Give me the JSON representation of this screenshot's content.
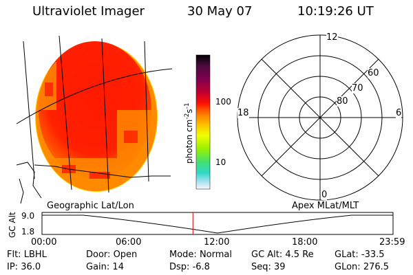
{
  "header": {
    "instrument": "Ultraviolet Imager",
    "date": "30 May 07",
    "time": "10:19:26 UT"
  },
  "colorbar": {
    "unit_label": "photon cm-2s-1",
    "unit_main": "photon cm",
    "unit_exp1": "-2",
    "unit_s": "s",
    "unit_exp2": "-1",
    "ticks": [
      "100",
      "10"
    ],
    "colors": [
      "#000000",
      "#4a0a3c",
      "#7a0050",
      "#a00040",
      "#c80030",
      "#e80010",
      "#ff3000",
      "#ff8a00",
      "#ffc000",
      "#f0ff00",
      "#a8f000",
      "#40e070",
      "#30d8c8",
      "#a0e0f0",
      "#f0f0f0"
    ]
  },
  "polar_plot": {
    "mlt_labels": {
      "top": "12",
      "left": "18",
      "right": "6",
      "bottom": "0"
    },
    "lat_labels": [
      "60",
      "70",
      "80"
    ]
  },
  "image": {
    "dominant_color": "#f82000",
    "edge_color": "#ff8000"
  },
  "altitude_strip": {
    "left_title": "Geographic Lat/Lon",
    "right_title": "Apex MLat/MLT",
    "ylabel": "GC Alt",
    "y_ticks": [
      "9.0",
      "1.8"
    ],
    "x_ticks": [
      "00:00",
      "06:00",
      "12:00",
      "18:00",
      "23:59"
    ],
    "marker_time_hours": 10.32,
    "marker_color": "#d00000"
  },
  "footer": {
    "rows": [
      [
        {
          "key": "Flt:",
          "val": "LBHL"
        },
        {
          "key": "Door:",
          "val": "Open"
        },
        {
          "key": "Mode:",
          "val": "Normal"
        },
        {
          "key": "GC Alt:",
          "val": "4.5 Re"
        },
        {
          "key": "GLat:",
          "val": "-33.5"
        }
      ],
      [
        {
          "key": "IP:",
          "val": "36.0"
        },
        {
          "key": "Gain:",
          "val": "14"
        },
        {
          "key": "Dsp:",
          "val": "-6.8"
        },
        {
          "key": "Seq:",
          "val": "39"
        },
        {
          "key": "GLon:",
          "val": "276.5"
        }
      ]
    ]
  }
}
